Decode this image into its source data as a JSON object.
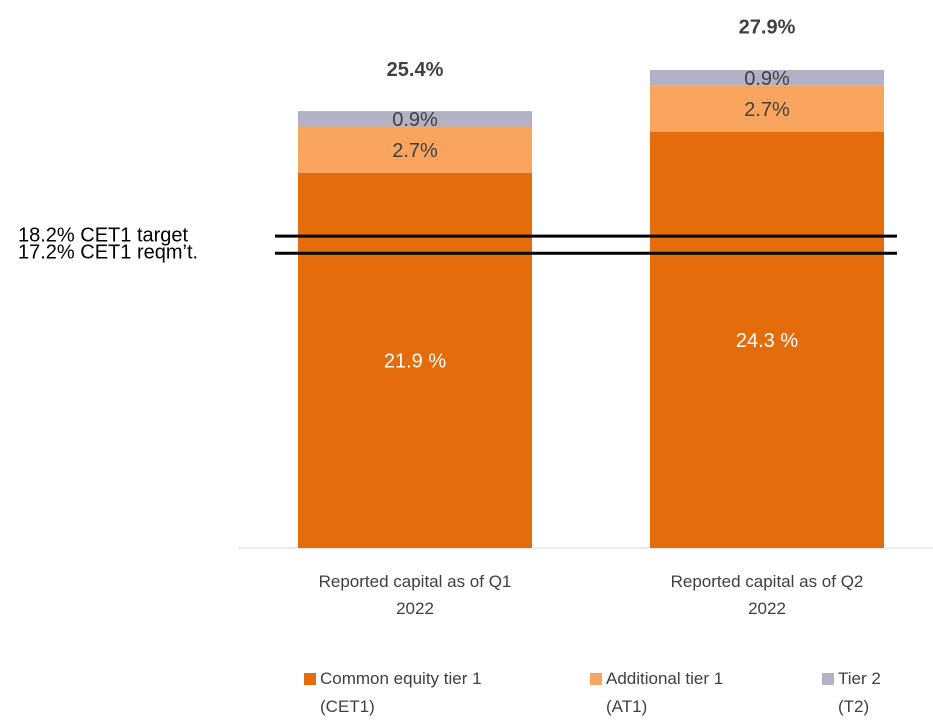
{
  "chart_data": {
    "type": "stacked_bar",
    "categories": [
      "Reported capital as of Q1 2022",
      "Reported capital as of Q2 2022"
    ],
    "series": [
      {
        "name": "Common equity tier 1 (CET1)",
        "color": "#e46c0a",
        "values": [
          21.9,
          24.3
        ],
        "value_labels": [
          "21.9 %",
          "24.3 %"
        ]
      },
      {
        "name": "Additional tier 1 (AT1)",
        "color": "#f9a55f",
        "values": [
          2.7,
          2.7
        ],
        "value_labels": [
          "2.7%",
          "2.7%"
        ]
      },
      {
        "name": "Tier 2 (T2)",
        "color": "#b3b1c6",
        "values": [
          0.9,
          0.9
        ],
        "value_labels": [
          "0.9%",
          "0.9%"
        ]
      }
    ],
    "totals": [
      25.4,
      27.9
    ],
    "total_labels": [
      "25.4%",
      "27.9%"
    ],
    "reference_lines": [
      {
        "value": 18.2,
        "label": "18.2% CET1 target"
      },
      {
        "value": 17.2,
        "label": "17.2% CET1 reqm’t."
      }
    ],
    "ylim": [
      0,
      30
    ],
    "legend": "bottom"
  }
}
